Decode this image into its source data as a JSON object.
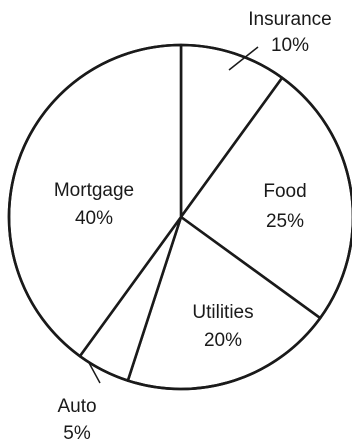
{
  "chart_data": {
    "type": "pie",
    "title": "",
    "start_angle_deg": 0,
    "direction": "clockwise",
    "slices": [
      {
        "label": "Insurance",
        "value": 10,
        "display": "10%"
      },
      {
        "label": "Food",
        "value": 25,
        "display": "25%"
      },
      {
        "label": "Utilities",
        "value": 20,
        "display": "20%"
      },
      {
        "label": "Auto",
        "value": 5,
        "display": "5%"
      },
      {
        "label": "Mortgage",
        "value": 40,
        "display": "40%"
      }
    ],
    "legend": "none",
    "colors": {
      "fill": "#ffffff",
      "stroke": "#1a1a1a",
      "text": "#1a1a1a"
    }
  }
}
